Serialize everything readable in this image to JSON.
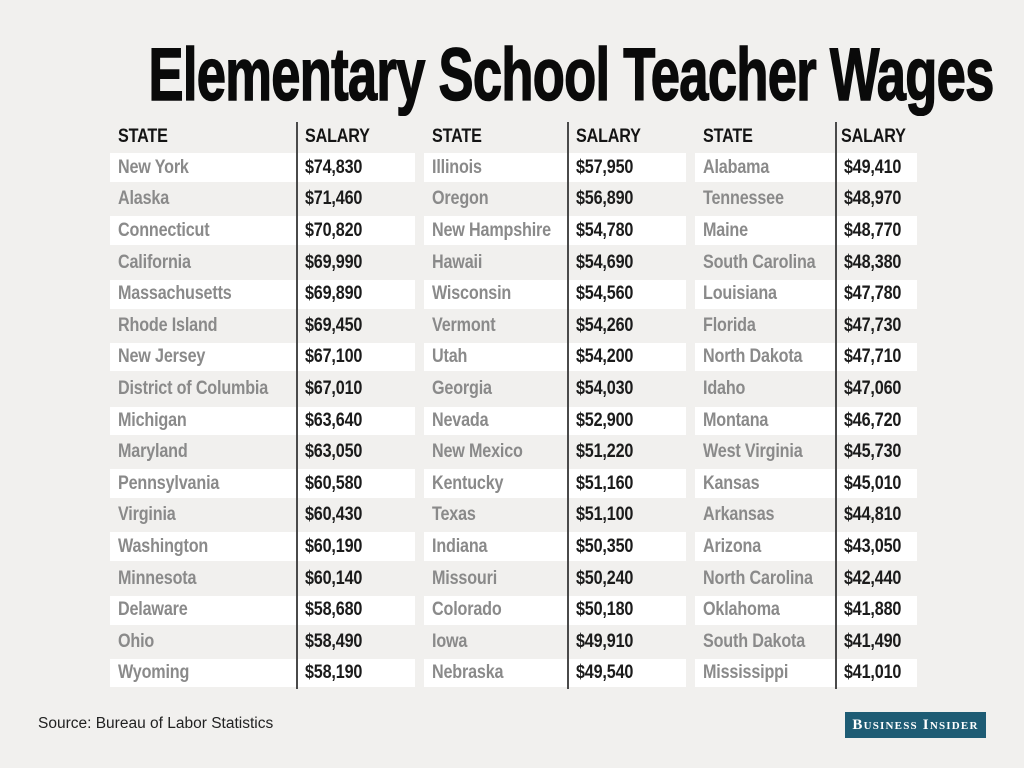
{
  "title": "Elementary School Teacher Wages",
  "footer": {
    "source": "Source: Bureau of Labor Statistics",
    "logo_text": "Business Insider"
  },
  "colors": {
    "background": "#f1f0ee",
    "stripe": "#ffffff",
    "divider": "#4a4a4a",
    "state-text": "#8a8a8a",
    "salary-text": "#1b1b1b",
    "header-text": "#141414",
    "title-text": "#0a0a0a",
    "source-text": "#222222",
    "logo-bg": "#1e5c74",
    "logo-text": "#ffffff"
  },
  "table": {
    "header": {
      "state": "STATE",
      "salary": "SALARY"
    },
    "groups": [
      {
        "rows": [
          {
            "state": "New York",
            "salary": "$74,830"
          },
          {
            "state": "Alaska",
            "salary": "$71,460"
          },
          {
            "state": "Connecticut",
            "salary": "$70,820"
          },
          {
            "state": "California",
            "salary": "$69,990"
          },
          {
            "state": "Massachusetts",
            "salary": "$69,890"
          },
          {
            "state": "Rhode Island",
            "salary": "$69,450"
          },
          {
            "state": "New Jersey",
            "salary": "$67,100"
          },
          {
            "state": "District of Columbia",
            "salary": "$67,010"
          },
          {
            "state": "Michigan",
            "salary": "$63,640"
          },
          {
            "state": "Maryland",
            "salary": "$63,050"
          },
          {
            "state": "Pennsylvania",
            "salary": "$60,580"
          },
          {
            "state": "Virginia",
            "salary": "$60,430"
          },
          {
            "state": "Washington",
            "salary": "$60,190"
          },
          {
            "state": "Minnesota",
            "salary": "$60,140"
          },
          {
            "state": "Delaware",
            "salary": "$58,680"
          },
          {
            "state": "Ohio",
            "salary": "$58,490"
          },
          {
            "state": "Wyoming",
            "salary": "$58,190"
          }
        ]
      },
      {
        "rows": [
          {
            "state": "Illinois",
            "salary": "$57,950"
          },
          {
            "state": "Oregon",
            "salary": "$56,890"
          },
          {
            "state": "New Hampshire",
            "salary": "$54,780"
          },
          {
            "state": "Hawaii",
            "salary": "$54,690"
          },
          {
            "state": "Wisconsin",
            "salary": "$54,560"
          },
          {
            "state": "Vermont",
            "salary": "$54,260"
          },
          {
            "state": "Utah",
            "salary": "$54,200"
          },
          {
            "state": "Georgia",
            "salary": "$54,030"
          },
          {
            "state": "Nevada",
            "salary": "$52,900"
          },
          {
            "state": "New Mexico",
            "salary": "$51,220"
          },
          {
            "state": "Kentucky",
            "salary": "$51,160"
          },
          {
            "state": "Texas",
            "salary": "$51,100"
          },
          {
            "state": "Indiana",
            "salary": "$50,350"
          },
          {
            "state": "Missouri",
            "salary": "$50,240"
          },
          {
            "state": "Colorado",
            "salary": "$50,180"
          },
          {
            "state": "Iowa",
            "salary": "$49,910"
          },
          {
            "state": "Nebraska",
            "salary": "$49,540"
          }
        ]
      },
      {
        "rows": [
          {
            "state": "Alabama",
            "salary": "$49,410"
          },
          {
            "state": "Tennessee",
            "salary": "$48,970"
          },
          {
            "state": "Maine",
            "salary": "$48,770"
          },
          {
            "state": "South Carolina",
            "salary": "$48,380"
          },
          {
            "state": "Louisiana",
            "salary": "$47,780"
          },
          {
            "state": "Florida",
            "salary": "$47,730"
          },
          {
            "state": "North Dakota",
            "salary": "$47,710"
          },
          {
            "state": "Idaho",
            "salary": "$47,060"
          },
          {
            "state": "Montana",
            "salary": "$46,720"
          },
          {
            "state": "West Virginia",
            "salary": "$45,730"
          },
          {
            "state": "Kansas",
            "salary": "$45,010"
          },
          {
            "state": "Arkansas",
            "salary": "$44,810"
          },
          {
            "state": "Arizona",
            "salary": "$43,050"
          },
          {
            "state": "North Carolina",
            "salary": "$42,440"
          },
          {
            "state": "Oklahoma",
            "salary": "$41,880"
          },
          {
            "state": "South Dakota",
            "salary": "$41,490"
          },
          {
            "state": "Mississippi",
            "salary": "$41,010"
          }
        ]
      }
    ]
  },
  "chart_data": {
    "type": "table",
    "title": "Elementary School Teacher Wages",
    "columns": [
      "State",
      "Salary"
    ],
    "source": "Bureau of Labor Statistics",
    "rows": [
      [
        "New York",
        74830
      ],
      [
        "Alaska",
        71460
      ],
      [
        "Connecticut",
        70820
      ],
      [
        "California",
        69990
      ],
      [
        "Massachusetts",
        69890
      ],
      [
        "Rhode Island",
        69450
      ],
      [
        "New Jersey",
        67100
      ],
      [
        "District of Columbia",
        67010
      ],
      [
        "Michigan",
        63640
      ],
      [
        "Maryland",
        63050
      ],
      [
        "Pennsylvania",
        60580
      ],
      [
        "Virginia",
        60430
      ],
      [
        "Washington",
        60190
      ],
      [
        "Minnesota",
        60140
      ],
      [
        "Delaware",
        58680
      ],
      [
        "Ohio",
        58490
      ],
      [
        "Wyoming",
        58190
      ],
      [
        "Illinois",
        57950
      ],
      [
        "Oregon",
        56890
      ],
      [
        "New Hampshire",
        54780
      ],
      [
        "Hawaii",
        54690
      ],
      [
        "Wisconsin",
        54560
      ],
      [
        "Vermont",
        54260
      ],
      [
        "Utah",
        54200
      ],
      [
        "Georgia",
        54030
      ],
      [
        "Nevada",
        52900
      ],
      [
        "New Mexico",
        51220
      ],
      [
        "Kentucky",
        51160
      ],
      [
        "Texas",
        51100
      ],
      [
        "Indiana",
        50350
      ],
      [
        "Missouri",
        50240
      ],
      [
        "Colorado",
        50180
      ],
      [
        "Iowa",
        49910
      ],
      [
        "Nebraska",
        49540
      ],
      [
        "Alabama",
        49410
      ],
      [
        "Tennessee",
        48970
      ],
      [
        "Maine",
        48770
      ],
      [
        "South Carolina",
        48380
      ],
      [
        "Louisiana",
        47780
      ],
      [
        "Florida",
        47730
      ],
      [
        "North Dakota",
        47710
      ],
      [
        "Idaho",
        47060
      ],
      [
        "Montana",
        46720
      ],
      [
        "West Virginia",
        45730
      ],
      [
        "Kansas",
        45010
      ],
      [
        "Arkansas",
        44810
      ],
      [
        "Arizona",
        43050
      ],
      [
        "North Carolina",
        42440
      ],
      [
        "Oklahoma",
        41880
      ],
      [
        "South Dakota",
        41490
      ],
      [
        "Mississippi",
        41010
      ]
    ]
  }
}
